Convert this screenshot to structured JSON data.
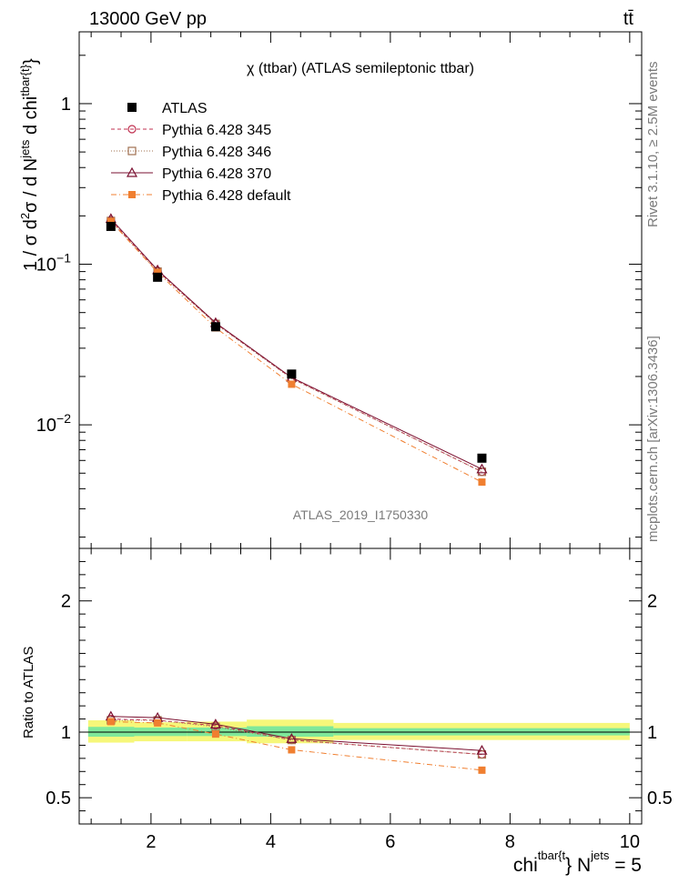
{
  "header": {
    "left_label": "13000 GeV pp",
    "right_label": "tt̄"
  },
  "side_labels": {
    "top": "Rivet 3.1.10, ≥ 2.5M events",
    "bottom": "mcplots.cern.ch [arXiv:1306.3436]"
  },
  "chart_data": {
    "type": "scatter",
    "title": "χ (ttbar) (ATLAS semileptonic ttbar)",
    "watermark": "ATLAS_2019_I1750330",
    "ylabel": "1 / σ d²σ / d N^jets d chi^tbar{t}",
    "ylabel_parts": {
      "a": "1 / σ d",
      "b": "2",
      "c": "σ / d N",
      "d": "jets",
      "e": " d chi",
      "f": "tbar{t}",
      "g": "}"
    },
    "xlabel": "chi^tbar{t}} N^jets = 5",
    "xlabel_parts": {
      "a": "chi",
      "b": "tbar{t",
      "c": "} N",
      "d": "jets",
      "e": " = 5"
    },
    "ratio_ylabel": "Ratio to ATLAS",
    "xlim": [
      0.8,
      10.2
    ],
    "ylim": [
      0.0017,
      2.8
    ],
    "ratio_ylim": [
      0.3,
      2.4
    ],
    "x_ticks": [
      2,
      4,
      6,
      8,
      10
    ],
    "x_tick_labels": [
      "2",
      "4",
      "6",
      "8",
      "10"
    ],
    "y_major_ticks": [
      0.01,
      0.1,
      1
    ],
    "y_tick_labels": [
      {
        "base": "10",
        "exp": "−2"
      },
      {
        "base": "10",
        "exp": "−1"
      },
      {
        "base": "1",
        "exp": ""
      }
    ],
    "ratio_ticks": [
      0.5,
      1,
      2
    ],
    "ratio_tick_labels": [
      "0.5",
      "1",
      "2"
    ],
    "x": [
      1.33,
      2.11,
      3.08,
      4.35,
      7.53
    ],
    "series": [
      {
        "name": "ATLAS",
        "key": "atlas",
        "color": "#000000",
        "marker": "square-filled",
        "values": [
          0.172,
          0.083,
          0.0408,
          0.0207,
          0.0062
        ],
        "ratio": [
          1.0,
          1.0,
          1.0,
          1.0,
          1.0
        ]
      },
      {
        "name": "Pythia 6.428 345",
        "key": "p345",
        "color": "#c03050",
        "marker": "circle-open",
        "dash": "4,3",
        "values": [
          0.188,
          0.091,
          0.0428,
          0.0195,
          0.0051
        ],
        "ratio": [
          1.1,
          1.09,
          1.05,
          0.94,
          0.83
        ]
      },
      {
        "name": "Pythia 6.428 346",
        "key": "p346",
        "color": "#a07050",
        "marker": "square-open",
        "dash": "1,2",
        "values": [
          0.186,
          0.09,
          0.0425,
          0.0194,
          0.0051
        ],
        "ratio": [
          1.09,
          1.09,
          1.04,
          0.94,
          0.83
        ]
      },
      {
        "name": "Pythia 6.428 370",
        "key": "p370",
        "color": "#7a1030",
        "marker": "triangle-open",
        "dash": "",
        "values": [
          0.192,
          0.092,
          0.0432,
          0.0197,
          0.0053
        ],
        "ratio": [
          1.12,
          1.11,
          1.06,
          0.95,
          0.86
        ]
      },
      {
        "name": "Pythia 6.428 default",
        "key": "pdef",
        "color": "#f07f30",
        "marker": "square-filled",
        "dash": "6,3,1,3",
        "values": [
          0.185,
          0.089,
          0.0402,
          0.0179,
          0.0044
        ],
        "ratio": [
          1.08,
          1.07,
          0.985,
          0.865,
          0.71
        ]
      }
    ],
    "uncertainty_bands": [
      {
        "x0": 0.95,
        "x1": 1.72,
        "green": [
          0.965,
          1.04
        ],
        "yellow": [
          0.92,
          1.09
        ]
      },
      {
        "x0": 1.72,
        "x1": 2.6,
        "green": [
          0.97,
          1.035
        ],
        "yellow": [
          0.93,
          1.075
        ]
      },
      {
        "x0": 2.6,
        "x1": 3.6,
        "green": [
          0.97,
          1.035
        ],
        "yellow": [
          0.93,
          1.08
        ]
      },
      {
        "x0": 3.6,
        "x1": 5.05,
        "green": [
          0.965,
          1.045
        ],
        "yellow": [
          0.915,
          1.095
        ]
      },
      {
        "x0": 5.05,
        "x1": 10.0,
        "green": [
          0.975,
          1.03
        ],
        "yellow": [
          0.94,
          1.07
        ]
      }
    ],
    "band_colors": {
      "green": "#7fe89a",
      "yellow": "#f6f77a"
    },
    "legend_position": "top-left"
  }
}
